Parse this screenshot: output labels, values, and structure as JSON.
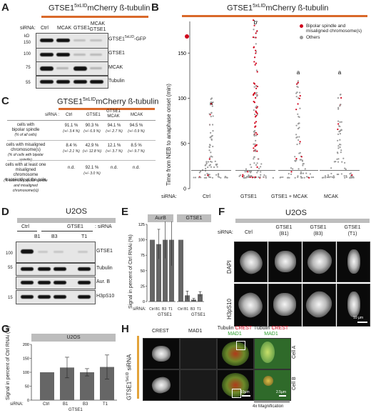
{
  "panels": [
    "A",
    "B",
    "C",
    "D",
    "E",
    "F",
    "G",
    "H"
  ],
  "A": {
    "title": "GTSE1",
    "title_sup": "5xLID",
    "title_rest": "mCherry ß-tubulin",
    "sirna_label": "siRNA:",
    "lanes": [
      "Ctrl",
      "MCAK",
      "GTSE1",
      "MCAK\nGTSE1"
    ],
    "kd_label": "kD",
    "markers": [
      "150",
      "100",
      "75",
      "55"
    ],
    "blots": [
      "GTSE1",
      "GTSE1",
      "MCAK",
      "Tubulin"
    ],
    "blot1_sup": "5xLID",
    "blot1_suffix": "-GFP"
  },
  "B": {
    "title": "GTSE1",
    "title_sup": "5xLID",
    "title_rest": "mCherry ß-tubulin",
    "ylabel": "Time from NEB to anaphase onset (min)",
    "sirna_label": "siRNA:",
    "chart_data": {
      "type": "scatter",
      "categories": [
        "Ctrl",
        "GTSE1",
        "GTSE1 + MCAK",
        "MCAK"
      ],
      "yticks": [
        0,
        50,
        100,
        150
      ],
      "ylim": [
        0,
        185
      ],
      "significance": [
        "a",
        "b",
        "a",
        "a"
      ],
      "legend": [
        "Bipolar spindle and misaligned chromosome(s)",
        "Others"
      ],
      "legend_colors": [
        "#d0021b",
        "#999999"
      ]
    }
  },
  "C": {
    "title": "GTSE1",
    "title_sup": "5xLID",
    "title_rest": "mCherry ß-tubulin",
    "sirna_label": "siRNA :",
    "cols": [
      "Ctrl",
      "GTSE1",
      "GTSE1\nMCAK",
      "MCAK"
    ],
    "rows": [
      {
        "label": "cells with\nbipolar spindle",
        "sub": "(% of all cells)",
        "vals": [
          "91.1 %",
          "90.3 %",
          "94.1 %",
          "94.5 %"
        ],
        "sd": [
          "(+/- 3.4 %)",
          "(+/- 6.9 %)",
          "(+/- 2.7 %)",
          "(+/- 0.9 %)"
        ]
      },
      {
        "label": "cells with misaligned\nchromosome(s)",
        "sub": "(% of cells with bipolar spindle)",
        "vals": [
          "8.4 %",
          "42.9 %",
          "12.1 %",
          "8.5 %"
        ],
        "sd": [
          "(+/- 2.1 %)",
          "(+/- 12.8 %)",
          "(+/- 3.7 %)",
          "(+/- 9.7 %)"
        ]
      },
      {
        "label": "cells with at least one\nmisaligned chromosome\ntransiently at the pole",
        "sub": "(% cells with bipolar spindle\nand misaligned chromosome(s))",
        "vals": [
          "n.d.",
          "92.1 %",
          "n.d.",
          "n.d."
        ],
        "sd": [
          "",
          "(+/- 3.0 %)",
          "",
          ""
        ]
      }
    ]
  },
  "D": {
    "title": "U2OS",
    "sirna_label": ": siRNA",
    "group_ctrl": "Ctrl",
    "group_gtse1": "GTSE1",
    "lanes": [
      "B1",
      "B3",
      "T1"
    ],
    "markers": [
      "100",
      "55",
      "",
      "15"
    ],
    "blots": [
      "GTSE1",
      "Tubulin",
      "Aur. B",
      "H3pS10"
    ]
  },
  "E": {
    "ylabel": "Signal in percent of Ctrl RNAi (%)",
    "headers": [
      "AurB",
      "GTSE1"
    ],
    "sirna_label": "siRNA:",
    "group_label": "GTSE1",
    "chart_data": {
      "type": "bar",
      "categories": [
        "Ctrl",
        "B1",
        "B3",
        "T1"
      ],
      "series": [
        {
          "name": "AurB",
          "values": [
            100,
            93,
            100,
            100
          ],
          "err": [
            0,
            24,
            30,
            42
          ]
        },
        {
          "name": "GTSE1",
          "values": [
            100,
            10,
            3,
            12
          ],
          "err": [
            0,
            7,
            2,
            4
          ]
        }
      ],
      "yticks": [
        0,
        25,
        50,
        75,
        100,
        125
      ],
      "ylim": [
        0,
        125
      ]
    }
  },
  "F": {
    "title": "U2OS",
    "sirna_label": "siRNA:",
    "cols": [
      "Ctrl",
      "GTSE1\n(B1)",
      "GTSE1\n(B3)",
      "GTSE1\n(T1)"
    ],
    "rows": [
      "DAPI",
      "H3pS10"
    ],
    "scalebar": "10 µm"
  },
  "G": {
    "ylabel": "Signal in percent of Ctrl RNAi (%)",
    "header": "U2OS",
    "sirna_label": "siRNA:",
    "group_label": "GTSE1",
    "chart_data": {
      "type": "bar",
      "categories": [
        "Ctrl",
        "B1",
        "B3",
        "T1"
      ],
      "values": [
        100,
        117,
        100,
        119
      ],
      "err": [
        0,
        37,
        13,
        43
      ],
      "yticks": [
        0,
        50,
        100,
        150,
        200
      ],
      "ylim": [
        0,
        200
      ]
    }
  },
  "H": {
    "side_label": "GTSE1",
    "side_sup": "5xLID",
    "side_rest": " siRNA",
    "cols": [
      "CREST",
      "MAD1",
      "Tubulin",
      "CREST",
      "Tubulin",
      "CREST",
      "MAD1",
      "MAD1"
    ],
    "rows": [
      "Cell A",
      "Cell B"
    ],
    "scalebar1": "10µm",
    "scalebar2": "2.5µm",
    "magnification": "4x Magnification"
  }
}
